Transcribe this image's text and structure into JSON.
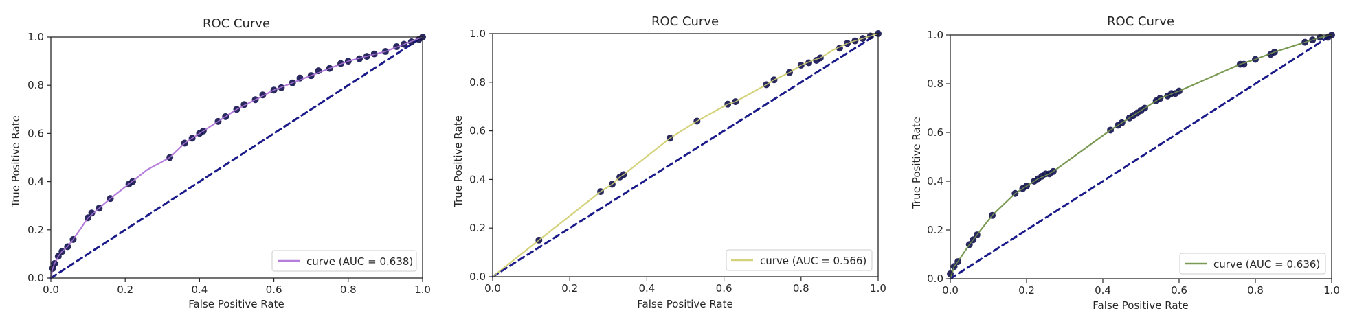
{
  "chart_data": [
    {
      "type": "line",
      "title": "ROC Curve",
      "xlabel": "False Positive Rate",
      "ylabel": "True Positive Rate",
      "xlim": [
        0,
        1
      ],
      "ylim": [
        0,
        1
      ],
      "xticks": [
        "0.0",
        "0.2",
        "0.4",
        "0.6",
        "0.8",
        "1.0"
      ],
      "yticks": [
        "0.0",
        "0.2",
        "0.4",
        "0.6",
        "0.8",
        "1.0"
      ],
      "grid": false,
      "legend_position": "lower right",
      "series": [
        {
          "name": "curve (AUC = 0.638)",
          "color": "#b57edc",
          "x": [
            0.0,
            0.005,
            0.01,
            0.02,
            0.03,
            0.045,
            0.06,
            0.1,
            0.13,
            0.16,
            0.21,
            0.26,
            0.32,
            0.36,
            0.4,
            0.45,
            0.5,
            0.55,
            0.6,
            0.65,
            0.7,
            0.75,
            0.8,
            0.85,
            0.9,
            0.95,
            1.0
          ],
          "y": [
            0.0,
            0.04,
            0.06,
            0.09,
            0.11,
            0.13,
            0.16,
            0.25,
            0.29,
            0.33,
            0.39,
            0.45,
            0.5,
            0.56,
            0.6,
            0.65,
            0.7,
            0.74,
            0.78,
            0.81,
            0.84,
            0.87,
            0.9,
            0.92,
            0.94,
            0.97,
            1.0
          ]
        },
        {
          "name": "",
          "color": "#1a1a8a",
          "style": "dashed",
          "x": [
            0,
            1
          ],
          "y": [
            0,
            1
          ]
        }
      ],
      "markers": {
        "color": "#12124f",
        "x": [
          0.005,
          0.01,
          0.02,
          0.03,
          0.045,
          0.06,
          0.1,
          0.11,
          0.13,
          0.16,
          0.21,
          0.22,
          0.32,
          0.36,
          0.38,
          0.4,
          0.41,
          0.45,
          0.47,
          0.5,
          0.52,
          0.55,
          0.57,
          0.6,
          0.62,
          0.65,
          0.67,
          0.7,
          0.72,
          0.75,
          0.78,
          0.8,
          0.83,
          0.85,
          0.87,
          0.9,
          0.93,
          0.95,
          0.97,
          0.99,
          1.0
        ],
        "y": [
          0.04,
          0.06,
          0.09,
          0.11,
          0.13,
          0.16,
          0.25,
          0.27,
          0.29,
          0.33,
          0.39,
          0.4,
          0.5,
          0.56,
          0.58,
          0.6,
          0.61,
          0.65,
          0.67,
          0.7,
          0.72,
          0.74,
          0.76,
          0.78,
          0.79,
          0.81,
          0.83,
          0.84,
          0.86,
          0.87,
          0.89,
          0.9,
          0.91,
          0.92,
          0.93,
          0.94,
          0.96,
          0.97,
          0.98,
          0.99,
          1.0
        ]
      }
    },
    {
      "type": "line",
      "title": "ROC Curve",
      "xlabel": "False Positive Rate",
      "ylabel": "True Positive Rate",
      "xlim": [
        0,
        1
      ],
      "ylim": [
        0,
        1
      ],
      "xticks": [
        "0.0",
        "0.2",
        "0.4",
        "0.6",
        "0.8",
        "1.0"
      ],
      "yticks": [
        "0.0",
        "0.2",
        "0.4",
        "0.6",
        "0.8",
        "1.0"
      ],
      "grid": false,
      "legend_position": "lower right",
      "series": [
        {
          "name": "curve (AUC = 0.566)",
          "color": "#d4d27a",
          "x": [
            0.0,
            0.12,
            0.28,
            0.31,
            0.33,
            0.34,
            0.46,
            0.53,
            0.61,
            0.63,
            0.71,
            0.73,
            0.77,
            0.8,
            0.83,
            0.85,
            0.88,
            0.92,
            0.96,
            1.0
          ],
          "y": [
            0.0,
            0.15,
            0.35,
            0.38,
            0.41,
            0.42,
            0.57,
            0.64,
            0.71,
            0.72,
            0.79,
            0.81,
            0.84,
            0.87,
            0.89,
            0.9,
            0.93,
            0.96,
            0.98,
            1.0
          ]
        },
        {
          "name": "",
          "color": "#1a1a8a",
          "style": "dashed",
          "x": [
            0,
            1
          ],
          "y": [
            0,
            1
          ]
        }
      ],
      "markers": {
        "color": "#12124f",
        "x": [
          0.12,
          0.28,
          0.31,
          0.33,
          0.34,
          0.46,
          0.53,
          0.61,
          0.63,
          0.71,
          0.73,
          0.77,
          0.8,
          0.82,
          0.84,
          0.85,
          0.9,
          0.92,
          0.94,
          0.96,
          0.98,
          1.0
        ],
        "y": [
          0.15,
          0.35,
          0.38,
          0.41,
          0.42,
          0.57,
          0.64,
          0.71,
          0.72,
          0.79,
          0.81,
          0.84,
          0.87,
          0.88,
          0.89,
          0.9,
          0.94,
          0.96,
          0.97,
          0.98,
          0.99,
          1.0
        ]
      }
    },
    {
      "type": "line",
      "title": "ROC Curve",
      "xlabel": "False Positive Rate",
      "ylabel": "True Positive Rate",
      "xlim": [
        0,
        1
      ],
      "ylim": [
        0,
        1
      ],
      "xticks": [
        "0.0",
        "0.2",
        "0.4",
        "0.6",
        "0.8",
        "1.0"
      ],
      "yticks": [
        "0.0",
        "0.2",
        "0.4",
        "0.6",
        "0.8",
        "1.0"
      ],
      "grid": false,
      "legend_position": "lower right",
      "series": [
        {
          "name": "curve (AUC = 0.636)",
          "color": "#7a9a55",
          "x": [
            0.0,
            0.01,
            0.02,
            0.05,
            0.07,
            0.11,
            0.17,
            0.2,
            0.23,
            0.26,
            0.27,
            0.42,
            0.45,
            0.5,
            0.55,
            0.6,
            0.76,
            0.8,
            0.85,
            0.93,
            0.97,
            1.0
          ],
          "y": [
            0.0,
            0.05,
            0.07,
            0.14,
            0.18,
            0.26,
            0.35,
            0.38,
            0.41,
            0.43,
            0.44,
            0.61,
            0.64,
            0.69,
            0.74,
            0.77,
            0.88,
            0.9,
            0.93,
            0.97,
            0.99,
            1.0
          ]
        },
        {
          "name": "",
          "color": "#1a1a8a",
          "style": "dashed",
          "x": [
            0,
            1
          ],
          "y": [
            0,
            1
          ]
        }
      ],
      "markers": {
        "color": "#12124f",
        "x": [
          0.0,
          0.01,
          0.02,
          0.05,
          0.06,
          0.07,
          0.11,
          0.17,
          0.19,
          0.2,
          0.22,
          0.23,
          0.24,
          0.25,
          0.26,
          0.27,
          0.42,
          0.44,
          0.45,
          0.47,
          0.48,
          0.49,
          0.5,
          0.51,
          0.54,
          0.55,
          0.57,
          0.58,
          0.59,
          0.6,
          0.76,
          0.77,
          0.8,
          0.84,
          0.85,
          0.93,
          0.95,
          0.97,
          0.99,
          1.0
        ],
        "y": [
          0.02,
          0.05,
          0.07,
          0.14,
          0.16,
          0.18,
          0.26,
          0.35,
          0.37,
          0.38,
          0.4,
          0.41,
          0.42,
          0.43,
          0.43,
          0.44,
          0.61,
          0.63,
          0.64,
          0.66,
          0.67,
          0.68,
          0.69,
          0.7,
          0.73,
          0.74,
          0.75,
          0.76,
          0.76,
          0.77,
          0.88,
          0.88,
          0.9,
          0.92,
          0.93,
          0.97,
          0.98,
          0.99,
          0.99,
          1.0
        ]
      }
    }
  ]
}
